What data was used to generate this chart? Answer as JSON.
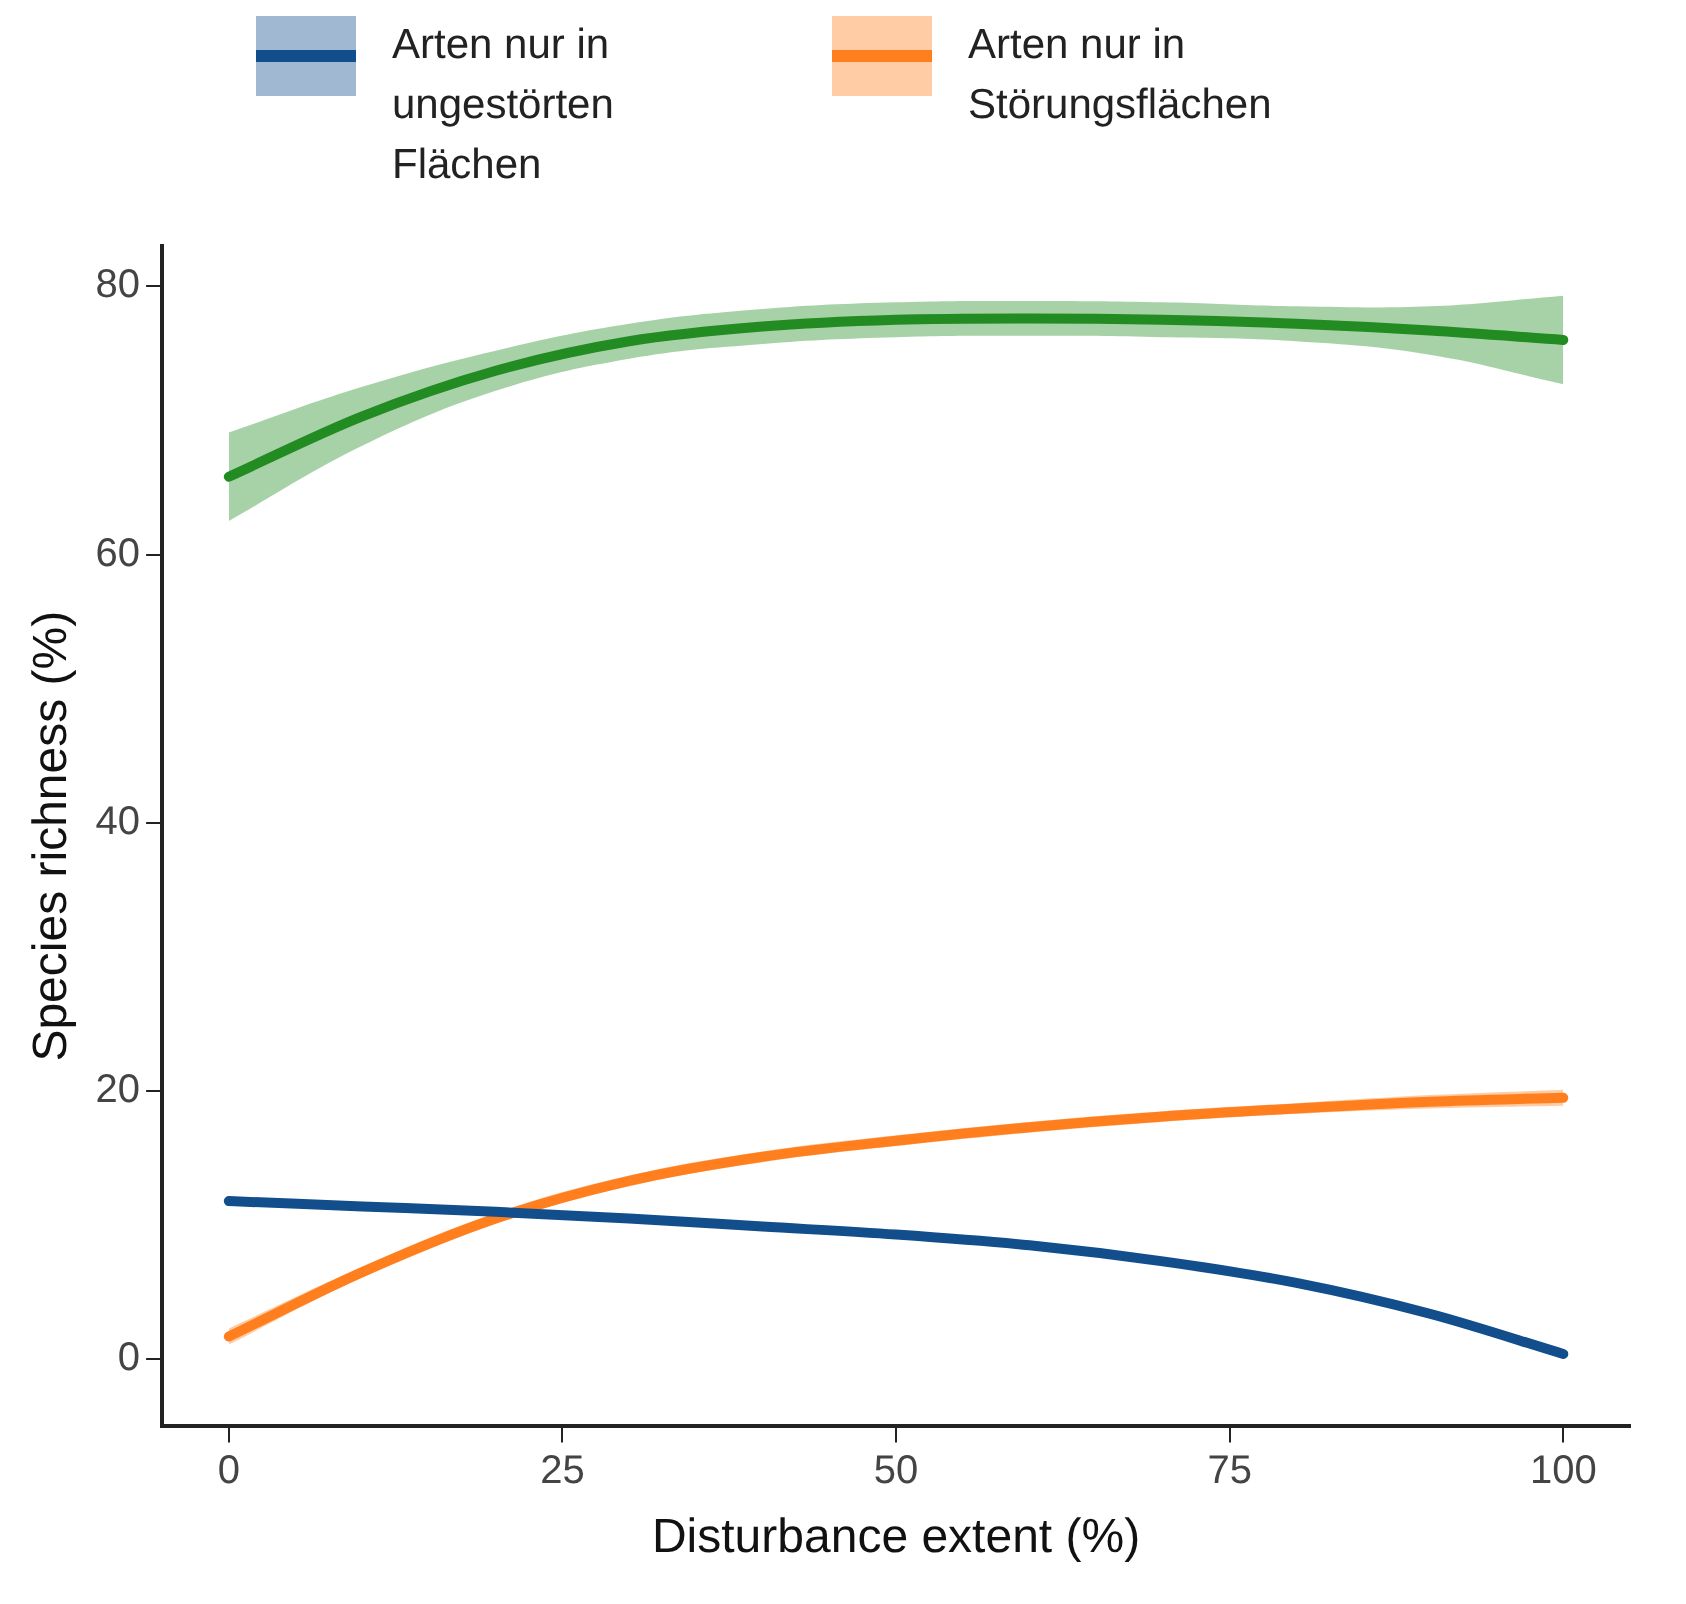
{
  "chart_data": {
    "type": "line",
    "xlabel": "Disturbance extent (%)",
    "ylabel": "Species richness (%)",
    "legend": "top",
    "grid": false,
    "marker": "none",
    "line_style": "solid",
    "xlim": [
      -5,
      105
    ],
    "xticks": [
      0,
      25,
      50,
      75,
      100
    ],
    "ylim": [
      -5,
      83
    ],
    "yticks": [
      0,
      20,
      40,
      60,
      80
    ],
    "series": [
      {
        "color": "#228b22",
        "x": [
          0,
          10,
          20,
          30,
          40,
          50,
          60,
          70,
          80,
          90,
          100
        ],
        "values": [
          65.8,
          70.3,
          73.7,
          75.9,
          77.0,
          77.5,
          77.6,
          77.5,
          77.2,
          76.7,
          76.0
        ],
        "lower": [
          62.5,
          68.1,
          72.2,
          74.6,
          75.7,
          76.2,
          76.3,
          76.2,
          75.9,
          74.9,
          72.7
        ],
        "upper": [
          69.1,
          72.5,
          75.2,
          77.2,
          78.3,
          78.8,
          78.9,
          78.8,
          78.5,
          78.5,
          79.3
        ]
      },
      {
        "name": "Arten nur in ungestörten Flächen",
        "color": "#124e8c",
        "x": [
          0,
          10,
          20,
          30,
          40,
          50,
          60,
          70,
          80,
          90,
          100
        ],
        "values": [
          11.8,
          11.4,
          11.0,
          10.5,
          9.9,
          9.3,
          8.5,
          7.3,
          5.7,
          3.4,
          0.4
        ]
      },
      {
        "name": "Arten nur in Störungsflächen",
        "color": "#ff7f1e",
        "x": [
          0,
          10,
          20,
          30,
          40,
          50,
          60,
          70,
          80,
          90,
          100
        ],
        "values": [
          1.7,
          6.5,
          10.5,
          13.3,
          15.1,
          16.3,
          17.3,
          18.1,
          18.7,
          19.2,
          19.5
        ],
        "lower": [
          1.1,
          6.1,
          10.1,
          12.9,
          14.7,
          15.9,
          16.9,
          17.7,
          18.3,
          18.7,
          18.9
        ],
        "upper": [
          2.3,
          6.9,
          10.9,
          13.7,
          15.5,
          16.7,
          17.7,
          18.5,
          19.1,
          19.7,
          20.1
        ]
      }
    ]
  }
}
